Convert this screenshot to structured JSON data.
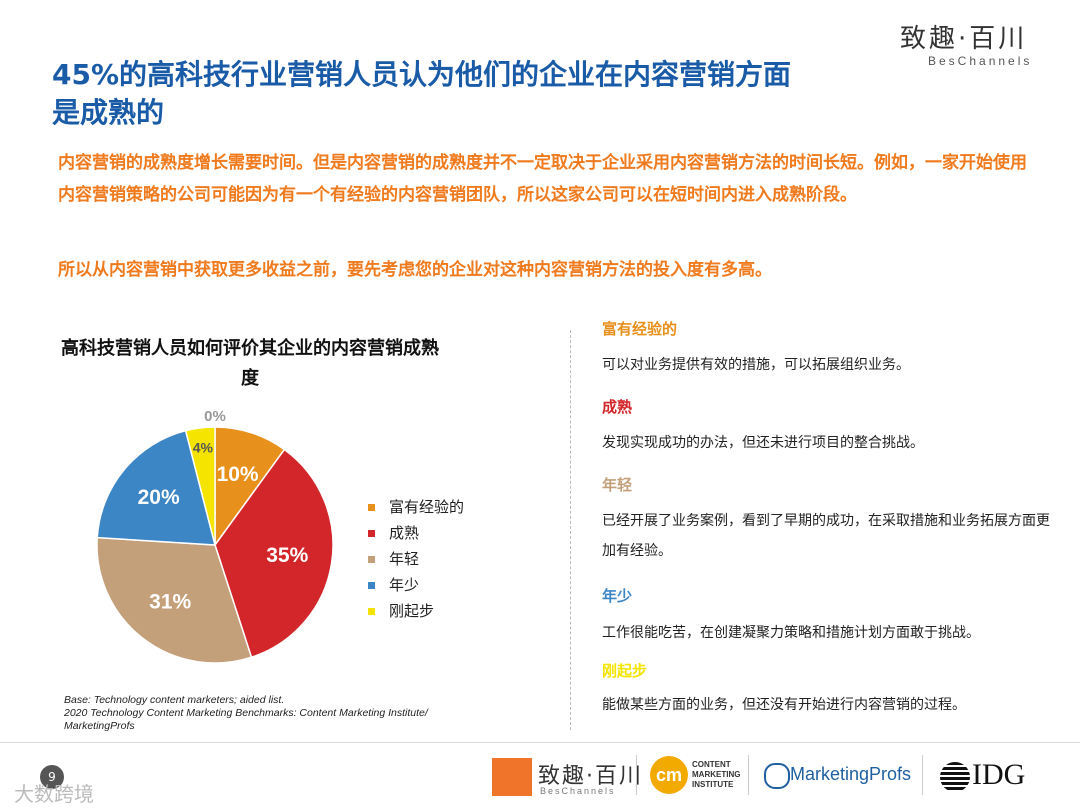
{
  "brand": {
    "name": "致趣·百川",
    "sub": "BesChannels"
  },
  "title": "45%的高科技行业营销人员认为他们的企业在内容营销方面是成熟的",
  "paragraphs": [
    "内容营销的成熟度增长需要时间。但是内容营销的成熟度并不一定取决于企业采用内容营销方法的时间长短。例如，一家开始使用内容营销策略的公司可能因为有一个有经验的内容营销团队，所以这家公司可以在短时间内进入成熟阶段。",
    "所以从内容营销中获取更多收益之前，要先考虑您的企业对这种内容营销方法的投入度有多高。"
  ],
  "chart_data": {
    "type": "pie",
    "title": "高科技营销人员如何评价其企业的内容营销成熟度",
    "categories": [
      "富有经验的",
      "成熟",
      "年轻",
      "年少",
      "刚起步",
      ""
    ],
    "values": [
      10,
      35,
      31,
      20,
      4,
      0
    ],
    "labels": [
      "10%",
      "35%",
      "31%",
      "20%",
      "4%",
      "0%"
    ],
    "colors": [
      "#e8901c",
      "#d3262a",
      "#c4a07a",
      "#3c86c6",
      "#f5e400",
      "#cccccc"
    ],
    "legend_position": "right"
  },
  "descriptions": [
    {
      "head": "富有经验的",
      "color": "#e8901c",
      "text": "可以对业务提供有效的措施，可以拓展组织业务。"
    },
    {
      "head": "成熟",
      "color": "#d3262a",
      "text": "发现实现成功的办法，但还未进行项目的整合挑战。"
    },
    {
      "head": "年轻",
      "color": "#c4a07a",
      "text": "已经开展了业务案例，看到了早期的成功，在采取措施和业务拓展方面更加有经验。"
    },
    {
      "head": "年少",
      "color": "#3c86c6",
      "text": "工作很能吃苦，在创建凝聚力策略和措施计划方面敢于挑战。"
    },
    {
      "head": "刚起步",
      "color": "#f5e400",
      "text": "能做某些方面的业务，但还没有开始进行内容营销的过程。"
    }
  ],
  "base_note": [
    "Base: Technology content marketers; aided list.",
    "2020 Technology Content Marketing Benchmarks: Content Marketing Institute/",
    "MarketingProfs"
  ],
  "footer": {
    "page": "9",
    "watermark": "大数跨境",
    "logos": {
      "bc_name": "致趣·百川",
      "bc_sub": "BesChannels",
      "cmi_mark": "cm",
      "cmi_lines": [
        "CONTENT",
        "MARKETING",
        "INSTITUTE"
      ],
      "mp": "MarketingProfs",
      "idg": "IDG"
    }
  }
}
